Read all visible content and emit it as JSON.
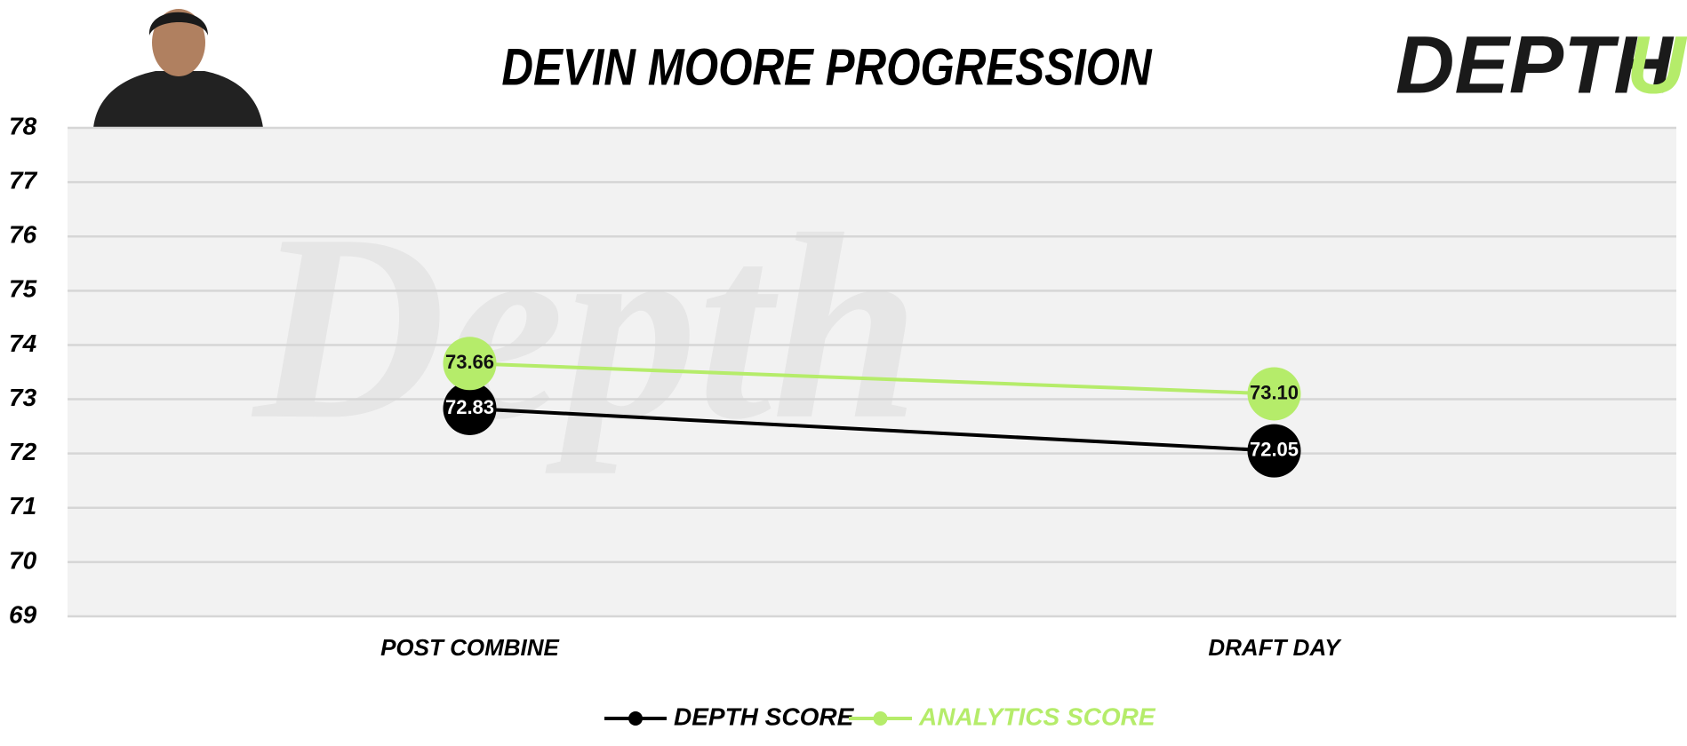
{
  "chart_data": {
    "type": "line",
    "title": "DEVIN MOORE PROGRESSION",
    "logo": [
      "DEPTH",
      "U"
    ],
    "watermark": "Depth",
    "categories": [
      "POST COMBINE",
      "DRAFT DAY"
    ],
    "series": [
      {
        "name": "DEPTH SCORE",
        "color": "#000000",
        "label_color": "#ffffff",
        "values": [
          72.83,
          72.05
        ],
        "value_labels": [
          "72.83",
          "72.05"
        ]
      },
      {
        "name": "ANALYTICS SCORE",
        "color": "#b5ec6a",
        "label_color": "#111111",
        "values": [
          73.66,
          73.1
        ],
        "value_labels": [
          "73.66",
          "73.10"
        ]
      }
    ],
    "ylim": [
      69,
      78
    ],
    "yticks": [
      69,
      70,
      71,
      72,
      73,
      74,
      75,
      76,
      77,
      78
    ],
    "grid": true
  }
}
